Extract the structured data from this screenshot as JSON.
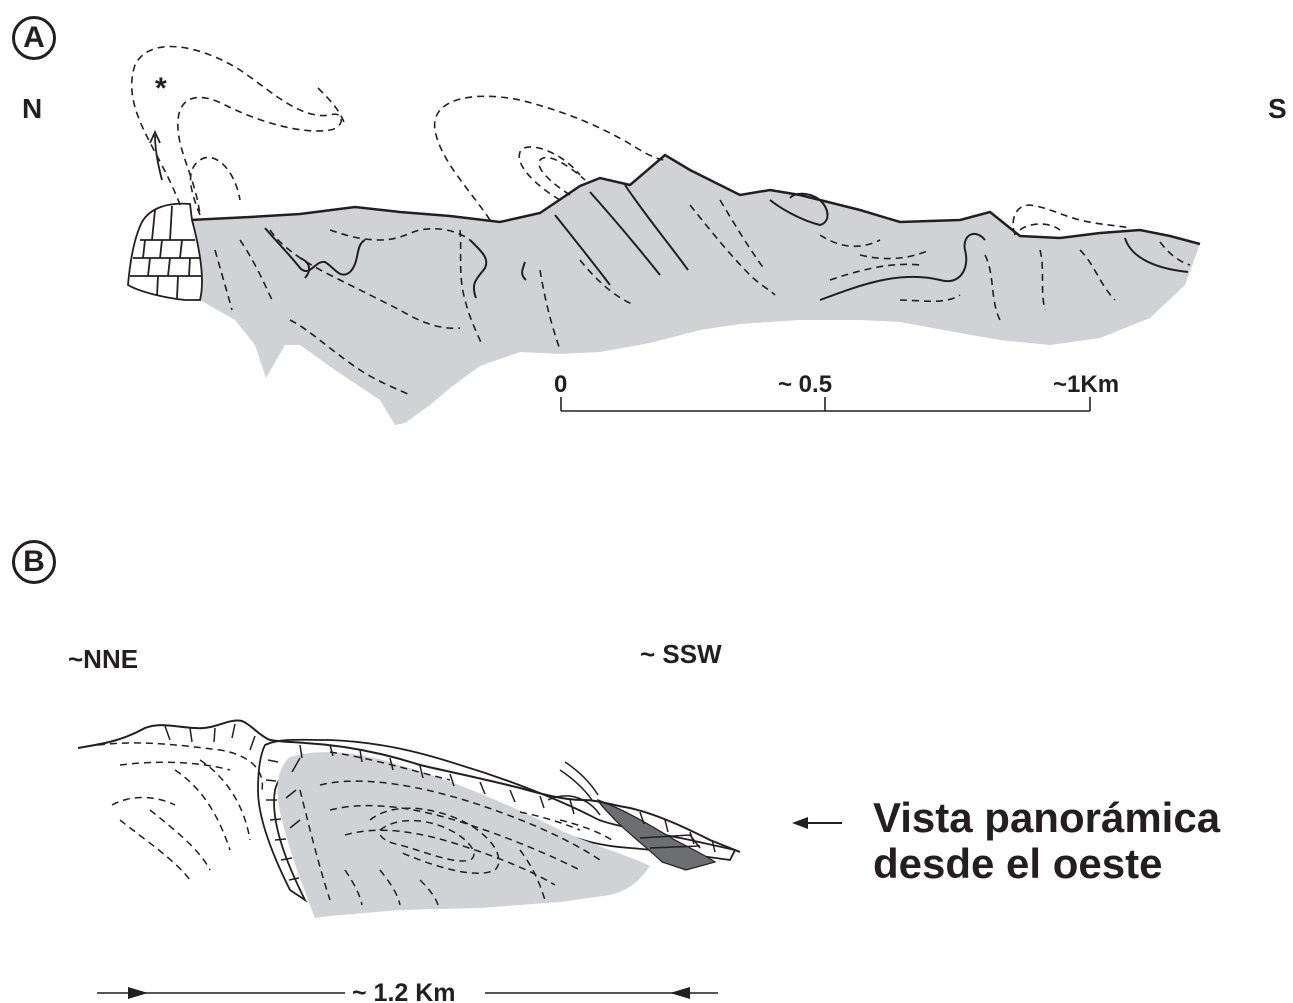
{
  "panel_a": {
    "letter": "A",
    "north_label": "N",
    "south_label": "S",
    "asterisk": "*",
    "scale": {
      "tick_start": "0",
      "tick_mid": "~ 0.5",
      "tick_end": "~1Km"
    }
  },
  "panel_b": {
    "letter": "B",
    "left_label": "~NNE",
    "right_label": "~ SSW",
    "scale_label": "~ 1.2 Km",
    "caption_line1": "Vista panorámica",
    "caption_line2": "desde el oeste"
  },
  "colors": {
    "outcrop_fill": "#d1d2d4",
    "dark_unit_fill": "#6d6e71",
    "line": "#231f20"
  }
}
